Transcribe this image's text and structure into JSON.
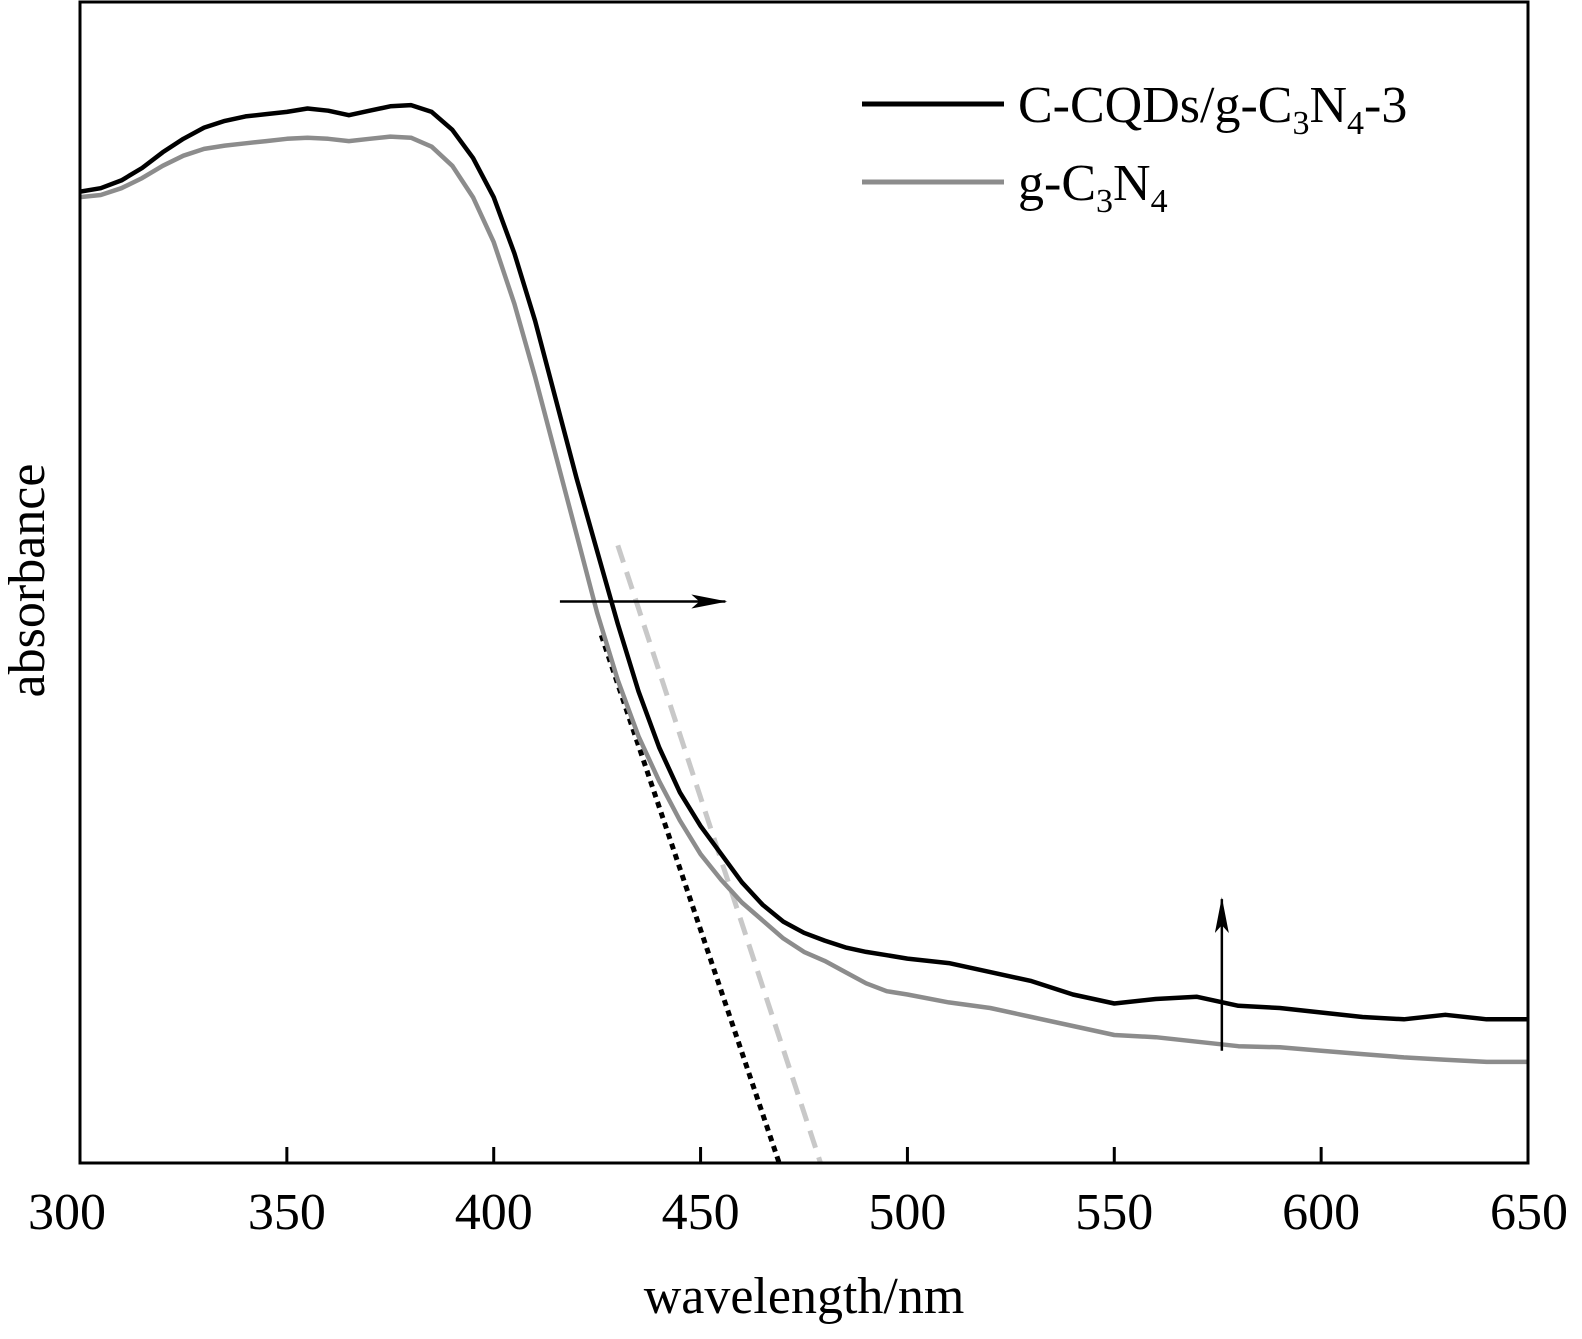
{
  "chart_data": {
    "type": "line",
    "xlabel": "wavelength/nm",
    "ylabel": "absorbance",
    "xlim": [
      300,
      650
    ],
    "ylim": [
      0,
      1
    ],
    "x_ticks": [
      300,
      350,
      400,
      450,
      500,
      550,
      600,
      650
    ],
    "x_tick_labels": [
      "300",
      "350",
      "400",
      "450",
      "500",
      "550",
      "600",
      "650"
    ],
    "y_ticks_shown": false,
    "grid": false,
    "legend_position": "top-right",
    "series": [
      {
        "name": "C-CQDs/g-C3N4-3",
        "name_parts": [
          "C-CQDs/g-C",
          "3",
          "N",
          "4",
          "-3"
        ],
        "color": "#000000",
        "x": [
          300,
          305,
          310,
          315,
          320,
          325,
          330,
          335,
          340,
          345,
          350,
          355,
          360,
          365,
          370,
          375,
          380,
          385,
          390,
          395,
          400,
          405,
          410,
          415,
          420,
          425,
          430,
          435,
          440,
          445,
          450,
          455,
          460,
          465,
          470,
          475,
          480,
          485,
          490,
          495,
          500,
          505,
          510,
          520,
          530,
          540,
          550,
          560,
          570,
          580,
          590,
          600,
          610,
          620,
          630,
          640,
          650
        ],
        "y": [
          0.865,
          0.868,
          0.875,
          0.886,
          0.9,
          0.912,
          0.922,
          0.928,
          0.932,
          0.934,
          0.936,
          0.939,
          0.937,
          0.933,
          0.937,
          0.941,
          0.942,
          0.936,
          0.92,
          0.895,
          0.86,
          0.81,
          0.75,
          0.68,
          0.61,
          0.545,
          0.48,
          0.42,
          0.37,
          0.33,
          0.3,
          0.275,
          0.25,
          0.23,
          0.215,
          0.205,
          0.198,
          0.192,
          0.188,
          0.185,
          0.182,
          0.18,
          0.178,
          0.17,
          0.162,
          0.15,
          0.142,
          0.146,
          0.148,
          0.14,
          0.138,
          0.134,
          0.13,
          0.128,
          0.132,
          0.128,
          0.128
        ]
      },
      {
        "name": "g-C3N4",
        "name_parts": [
          "g-C",
          "3",
          "N",
          "4"
        ],
        "color": "#8c8c8c",
        "x": [
          300,
          305,
          310,
          315,
          320,
          325,
          330,
          335,
          340,
          345,
          350,
          355,
          360,
          365,
          370,
          375,
          380,
          385,
          390,
          395,
          400,
          405,
          410,
          415,
          420,
          425,
          430,
          435,
          440,
          445,
          450,
          455,
          460,
          465,
          470,
          475,
          480,
          485,
          490,
          495,
          500,
          510,
          520,
          530,
          540,
          550,
          560,
          570,
          580,
          590,
          600,
          610,
          620,
          630,
          640,
          650
        ],
        "y": [
          0.86,
          0.862,
          0.868,
          0.877,
          0.888,
          0.897,
          0.903,
          0.906,
          0.908,
          0.91,
          0.912,
          0.913,
          0.912,
          0.91,
          0.912,
          0.914,
          0.913,
          0.905,
          0.888,
          0.86,
          0.82,
          0.765,
          0.7,
          0.63,
          0.56,
          0.49,
          0.43,
          0.38,
          0.34,
          0.305,
          0.275,
          0.252,
          0.232,
          0.216,
          0.2,
          0.188,
          0.18,
          0.17,
          0.16,
          0.153,
          0.15,
          0.143,
          0.138,
          0.13,
          0.122,
          0.114,
          0.112,
          0.108,
          0.104,
          0.103,
          0.1,
          0.097,
          0.094,
          0.092,
          0.09,
          0.09
        ]
      }
    ],
    "tangent_lines": [
      {
        "style": "dotted",
        "color": "#000000",
        "x": [
          426,
          469
        ],
        "y": [
          0.47,
          0
        ]
      },
      {
        "style": "dashed",
        "color": "#c8c8c8",
        "x": [
          430,
          479
        ],
        "y": [
          0.55,
          0
        ]
      }
    ],
    "annotations": [
      {
        "type": "arrow",
        "direction": "right",
        "x": [
          416,
          456
        ],
        "y": [
          0.5,
          0.5
        ]
      },
      {
        "type": "arrow",
        "direction": "up",
        "x": [
          576,
          576
        ],
        "y": [
          0.1,
          0.235
        ]
      }
    ]
  }
}
